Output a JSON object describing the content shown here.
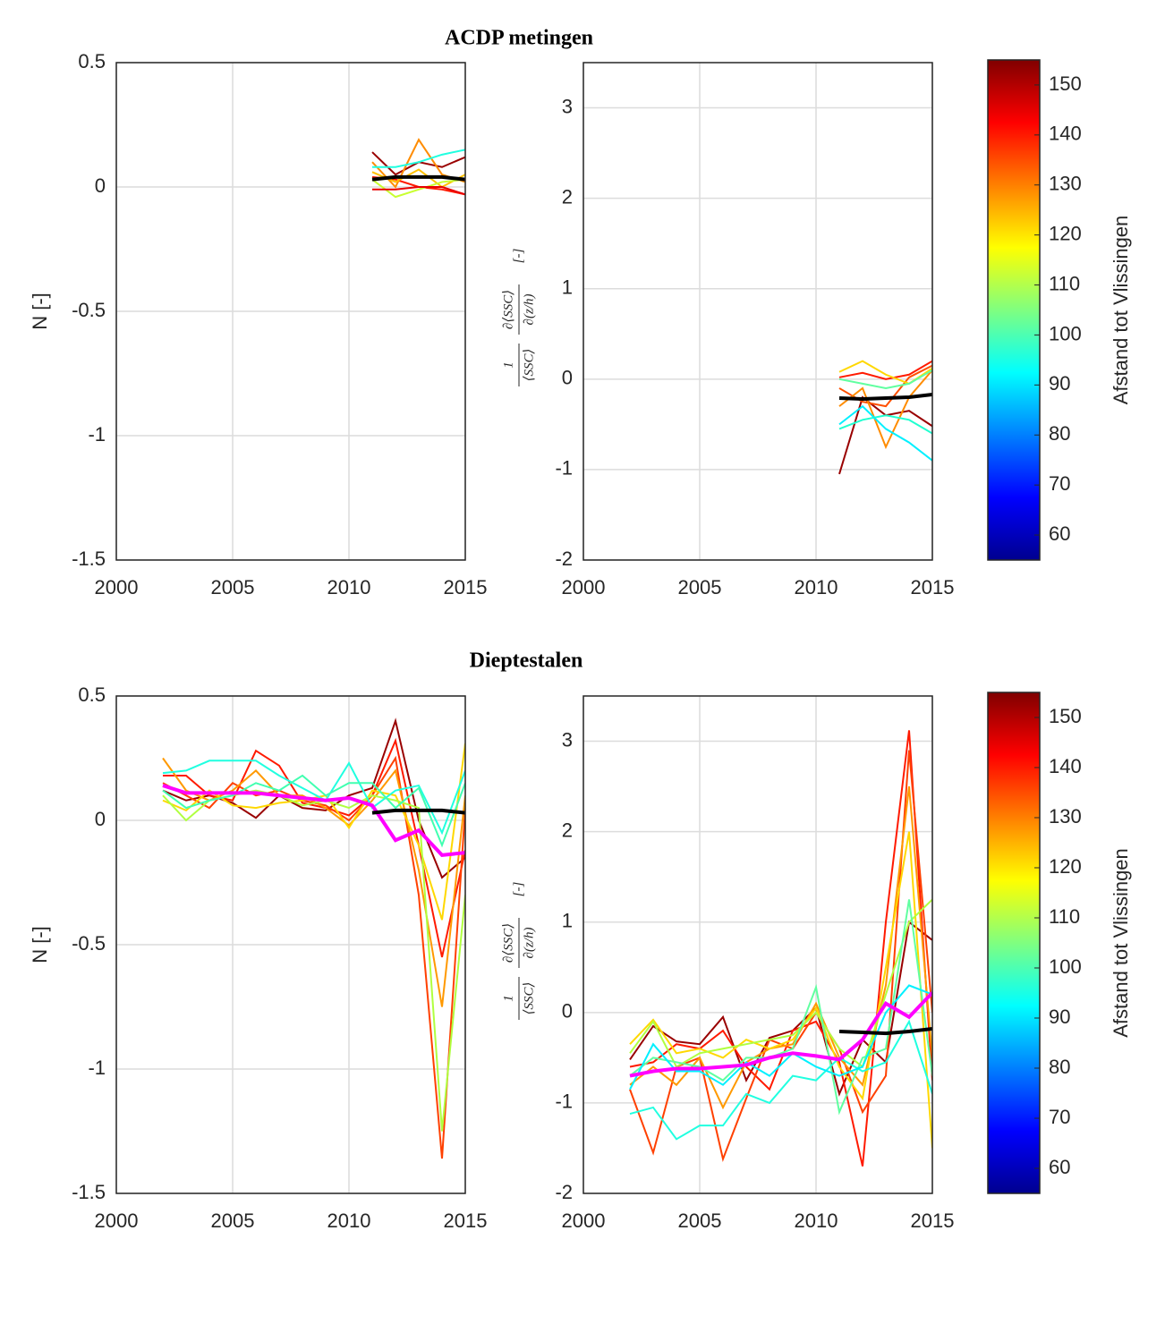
{
  "chart_data": [
    {
      "type": "line",
      "title": "ACDP metingen",
      "ylabel": "N [-]",
      "x": [
        2011,
        2012,
        2013,
        2014,
        2015
      ],
      "xlim": [
        2000,
        2015
      ],
      "xticks": [
        2000,
        2005,
        2010,
        2015
      ],
      "ylim": [
        -1.5,
        0.5
      ],
      "yticks": [
        -1.5,
        -1,
        -0.5,
        0,
        0.5
      ],
      "grid": true,
      "series": [
        {
          "color": "#990000",
          "values": [
            0.14,
            0.05,
            0.1,
            0.08,
            0.12
          ]
        },
        {
          "color": "#ff1a00",
          "values": [
            0.04,
            0.03,
            0.0,
            -0.01,
            -0.03
          ]
        },
        {
          "color": "#ff8c00",
          "values": [
            0.1,
            0.0,
            0.19,
            0.05,
            0.02
          ]
        },
        {
          "color": "#ffc000",
          "values": [
            0.06,
            0.02,
            0.07,
            0.0,
            0.05
          ]
        },
        {
          "color": "#c8ff30",
          "values": [
            0.03,
            -0.04,
            -0.01,
            0.02,
            0.03
          ]
        },
        {
          "color": "#20ffe0",
          "values": [
            0.08,
            0.08,
            0.1,
            0.13,
            0.15
          ]
        },
        {
          "color": "#e60000",
          "values": [
            -0.01,
            -0.01,
            0.0,
            0.0,
            -0.03
          ]
        },
        {
          "color": "#000000",
          "values": [
            0.03,
            0.04,
            0.04,
            0.04,
            0.03
          ]
        }
      ]
    },
    {
      "type": "line",
      "ylabel": {
        "inv_num": "1",
        "inv_den": "⟨SSC⟩",
        "d_num": "∂⟨SSC⟩",
        "d_den": "∂(z/h)",
        "unit": "[-]"
      },
      "x": [
        2011,
        2012,
        2013,
        2014,
        2015
      ],
      "xlim": [
        2000,
        2015
      ],
      "xticks": [
        2000,
        2005,
        2010,
        2015
      ],
      "ylim": [
        -2,
        3.5
      ],
      "yticks": [
        -2,
        -1,
        0,
        1,
        2,
        3
      ],
      "grid": true,
      "series": [
        {
          "color": "#990000",
          "values": [
            -1.05,
            -0.2,
            -0.4,
            -0.35,
            -0.52
          ]
        },
        {
          "color": "#ff1a00",
          "values": [
            0.02,
            0.07,
            0.0,
            0.05,
            0.2
          ]
        },
        {
          "color": "#ff5000",
          "values": [
            -0.1,
            -0.25,
            -0.3,
            0.02,
            0.15
          ]
        },
        {
          "color": "#ff8c00",
          "values": [
            -0.3,
            -0.1,
            -0.75,
            -0.2,
            0.1
          ]
        },
        {
          "color": "#ffd800",
          "values": [
            0.08,
            0.2,
            0.05,
            -0.05,
            0.12
          ]
        },
        {
          "color": "#20ffd0",
          "values": [
            -0.55,
            -0.45,
            -0.4,
            -0.45,
            -0.6
          ]
        },
        {
          "color": "#00f0ff",
          "values": [
            -0.5,
            -0.3,
            -0.55,
            -0.7,
            -0.9
          ]
        },
        {
          "color": "#60ffa0",
          "values": [
            0.0,
            -0.05,
            -0.1,
            -0.05,
            0.1
          ]
        },
        {
          "color": "#000000",
          "values": [
            -0.21,
            -0.22,
            -0.21,
            -0.2,
            -0.17
          ]
        }
      ]
    },
    {
      "type": "line",
      "title": "Dieptestalen",
      "ylabel": "N [-]",
      "x": [
        2002,
        2003,
        2004,
        2005,
        2006,
        2007,
        2008,
        2009,
        2010,
        2011,
        2012,
        2013,
        2014,
        2015
      ],
      "xlim": [
        2000,
        2015
      ],
      "xticks": [
        2000,
        2005,
        2010,
        2015
      ],
      "ylim": [
        -1.5,
        0.5
      ],
      "yticks": [
        -1.5,
        -1,
        -0.5,
        0,
        0.5
      ],
      "grid": true,
      "series": [
        {
          "color": "#990000",
          "values": [
            0.12,
            0.08,
            0.1,
            0.07,
            0.01,
            0.1,
            0.05,
            0.04,
            0.1,
            0.13,
            0.4,
            0.0,
            -0.23,
            -0.15
          ]
        },
        {
          "color": "#ff1a00",
          "values": [
            0.18,
            0.18,
            0.1,
            0.08,
            0.28,
            0.22,
            0.07,
            0.05,
            0.02,
            0.1,
            0.32,
            -0.1,
            -0.55,
            -0.12
          ]
        },
        {
          "color": "#ff4000",
          "values": [
            0.15,
            0.1,
            0.05,
            0.15,
            0.1,
            0.12,
            0.08,
            0.06,
            0.0,
            0.1,
            0.25,
            -0.3,
            -1.36,
            0.05
          ]
        },
        {
          "color": "#ff9900",
          "values": [
            0.25,
            0.12,
            0.08,
            0.12,
            0.2,
            0.1,
            0.1,
            0.05,
            -0.02,
            0.08,
            0.2,
            -0.2,
            -0.75,
            0.1
          ]
        },
        {
          "color": "#ffd800",
          "values": [
            0.08,
            0.04,
            0.12,
            0.06,
            0.05,
            0.07,
            0.08,
            0.1,
            -0.03,
            0.12,
            0.1,
            -0.1,
            -0.4,
            0.31
          ]
        },
        {
          "color": "#b0ff40",
          "values": [
            0.1,
            0.0,
            0.08,
            0.1,
            0.12,
            0.1,
            0.06,
            0.08,
            0.05,
            0.1,
            0.08,
            0.05,
            -1.25,
            -0.3
          ]
        },
        {
          "color": "#20ffe0",
          "values": [
            0.19,
            0.2,
            0.24,
            0.24,
            0.24,
            0.18,
            0.13,
            0.08,
            0.23,
            0.05,
            0.12,
            0.14,
            -0.05,
            0.2
          ]
        },
        {
          "color": "#40ffb0",
          "values": [
            0.12,
            0.05,
            0.08,
            0.1,
            0.15,
            0.12,
            0.18,
            0.1,
            0.15,
            0.15,
            0.05,
            0.13,
            -0.1,
            0.15
          ]
        },
        {
          "color": "#ff00ff",
          "values": [
            0.14,
            0.11,
            0.11,
            0.11,
            0.11,
            0.1,
            0.09,
            0.08,
            0.09,
            0.06,
            -0.08,
            -0.04,
            -0.14,
            -0.13
          ]
        },
        {
          "color": "#000000",
          "values": [
            null,
            null,
            null,
            null,
            null,
            null,
            null,
            null,
            null,
            0.03,
            0.04,
            0.04,
            0.04,
            0.03
          ]
        }
      ]
    },
    {
      "type": "line",
      "ylabel": {
        "inv_num": "1",
        "inv_den": "⟨SSC⟩",
        "d_num": "∂⟨SSC⟩",
        "d_den": "∂(z/h)",
        "unit": "[-]"
      },
      "x": [
        2002,
        2003,
        2004,
        2005,
        2006,
        2007,
        2008,
        2009,
        2010,
        2011,
        2012,
        2013,
        2014,
        2015
      ],
      "xlim": [
        2000,
        2015
      ],
      "xticks": [
        2000,
        2005,
        2010,
        2015
      ],
      "ylim": [
        -2,
        3.5
      ],
      "yticks": [
        -2,
        -1,
        0,
        1,
        2,
        3
      ],
      "grid": true,
      "series": [
        {
          "color": "#990000",
          "values": [
            -0.52,
            -0.15,
            -0.32,
            -0.35,
            -0.05,
            -0.75,
            -0.28,
            -0.2,
            0.05,
            -0.9,
            -0.3,
            -0.55,
            1.0,
            0.8
          ]
        },
        {
          "color": "#ff1a00",
          "values": [
            -0.6,
            -0.55,
            -0.35,
            -0.4,
            -0.2,
            -0.6,
            -0.85,
            -0.2,
            -0.1,
            -0.55,
            -1.7,
            1.0,
            3.12,
            -0.75
          ]
        },
        {
          "color": "#ff4000",
          "values": [
            -0.85,
            -1.55,
            -0.6,
            -0.5,
            -1.62,
            -0.95,
            -0.3,
            -0.4,
            0.0,
            -0.4,
            -1.1,
            -0.7,
            2.9,
            0.0
          ]
        },
        {
          "color": "#ff9900",
          "values": [
            -0.8,
            -0.6,
            -0.8,
            -0.5,
            -1.05,
            -0.55,
            -0.4,
            -0.35,
            0.1,
            -0.5,
            -0.8,
            0.3,
            2.5,
            -0.5
          ]
        },
        {
          "color": "#ffd800",
          "values": [
            -0.35,
            -0.08,
            -0.45,
            -0.4,
            -0.5,
            -0.3,
            -0.4,
            -0.3,
            0.05,
            -0.6,
            -0.95,
            0.5,
            2.0,
            -1.5
          ]
        },
        {
          "color": "#b0ff40",
          "values": [
            -0.45,
            -0.1,
            -0.6,
            -0.45,
            -0.4,
            -0.35,
            -0.3,
            -0.25,
            0.0,
            -0.4,
            -0.6,
            0.2,
            1.0,
            1.25
          ]
        },
        {
          "color": "#60ffa0",
          "values": [
            -0.7,
            -0.5,
            -0.55,
            -0.6,
            -0.75,
            -0.5,
            -0.5,
            -0.4,
            0.28,
            -1.1,
            -0.5,
            -0.4,
            1.25,
            -0.7
          ]
        },
        {
          "color": "#20ffe0",
          "values": [
            -1.12,
            -1.05,
            -1.4,
            -1.25,
            -1.25,
            -0.9,
            -1.0,
            -0.7,
            -0.75,
            -0.5,
            -0.65,
            -0.55,
            -0.1,
            -0.9
          ]
        },
        {
          "color": "#00f0ff",
          "values": [
            -0.85,
            -0.35,
            -0.65,
            -0.65,
            -0.8,
            -0.55,
            -0.7,
            -0.45,
            -0.6,
            -0.7,
            -0.6,
            0.0,
            0.3,
            0.2
          ]
        },
        {
          "color": "#ff00ff",
          "values": [
            -0.7,
            -0.65,
            -0.62,
            -0.62,
            -0.6,
            -0.58,
            -0.5,
            -0.45,
            -0.48,
            -0.52,
            -0.3,
            0.1,
            -0.05,
            0.22
          ]
        },
        {
          "color": "#000000",
          "values": [
            null,
            null,
            null,
            null,
            null,
            null,
            null,
            null,
            null,
            -0.21,
            -0.22,
            -0.23,
            -0.21,
            -0.18
          ]
        }
      ]
    },
    {
      "type": "colorbar",
      "label": "Afstand tot Vlissingen",
      "clim": [
        55,
        155
      ],
      "ticks": [
        60,
        70,
        80,
        90,
        100,
        110,
        120,
        130,
        140,
        150
      ]
    },
    {
      "type": "colorbar",
      "label": "Afstand tot Vlissingen",
      "clim": [
        55,
        155
      ],
      "ticks": [
        60,
        70,
        80,
        90,
        100,
        110,
        120,
        130,
        140,
        150
      ]
    }
  ]
}
